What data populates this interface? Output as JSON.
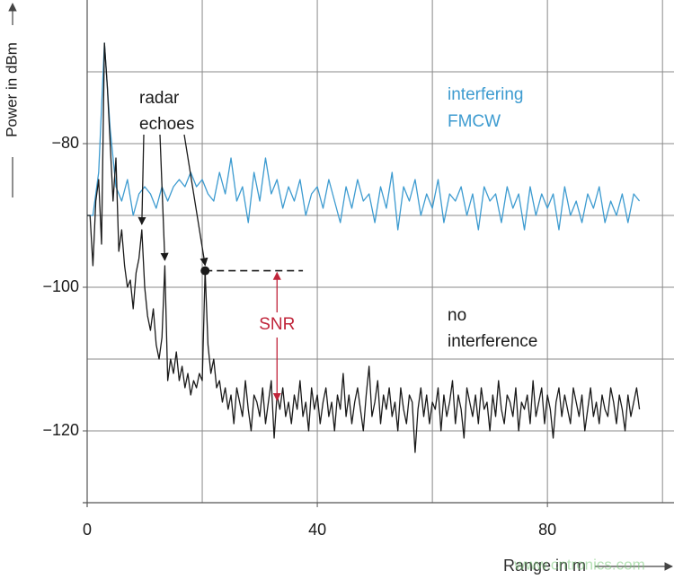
{
  "chart_data": {
    "type": "line",
    "y_label": "Power in dBm",
    "x_label": "Range in m",
    "watermark": "www.cntronics.com",
    "xlim": [
      0,
      102
    ],
    "ylim": [
      -130,
      -60
    ],
    "xticks": [
      0,
      40,
      80
    ],
    "yticks": [
      {
        "value": -80,
        "label": "−80"
      },
      {
        "value": -100,
        "label": "−100"
      },
      {
        "value": -120,
        "label": "−120"
      }
    ],
    "xgrid": [
      20,
      40,
      60,
      80,
      100
    ],
    "ygrid": [
      -70,
      -80,
      -90,
      -100,
      -110,
      -120
    ],
    "grid": true,
    "series": [
      {
        "name": "no interference",
        "color": "#1a1a1a",
        "x": [
          0,
          0.5,
          1,
          1.5,
          2,
          2.5,
          3,
          3.5,
          4,
          4.5,
          5,
          5.5,
          6,
          6.5,
          7,
          7.5,
          8,
          8.5,
          9,
          9.5,
          10,
          10.5,
          11,
          11.5,
          12,
          12.5,
          13,
          13.5,
          14,
          14.5,
          15,
          15.5,
          16,
          16.5,
          17,
          17.5,
          18,
          18.5,
          19,
          19.5,
          20,
          20.5,
          21,
          21.5,
          22,
          22.5,
          23,
          23.5,
          24,
          24.5,
          25,
          25.5,
          26,
          26.5,
          27,
          27.5,
          28,
          28.5,
          29,
          29.5,
          30,
          30.5,
          31,
          31.5,
          32,
          32.5,
          33,
          33.5,
          34,
          34.5,
          35,
          35.5,
          36,
          36.5,
          37,
          37.5,
          38,
          38.5,
          39,
          39.5,
          40,
          40.5,
          41,
          41.5,
          42,
          42.5,
          43,
          43.5,
          44,
          44.5,
          45,
          45.5,
          46,
          46.5,
          47,
          47.5,
          48,
          48.5,
          49,
          49.5,
          50,
          50.5,
          51,
          51.5,
          52,
          52.5,
          53,
          53.5,
          54,
          54.5,
          55,
          55.5,
          56,
          56.5,
          57,
          57.5,
          58,
          58.5,
          59,
          59.5,
          60,
          60.5,
          61,
          61.5,
          62,
          62.5,
          63,
          63.5,
          64,
          64.5,
          65,
          65.5,
          66,
          66.5,
          67,
          67.5,
          68,
          68.5,
          69,
          69.5,
          70,
          70.5,
          71,
          71.5,
          72,
          72.5,
          73,
          73.5,
          74,
          74.5,
          75,
          75.5,
          76,
          76.5,
          77,
          77.5,
          78,
          78.5,
          79,
          79.5,
          80,
          80.5,
          81,
          81.5,
          82,
          82.5,
          83,
          83.5,
          84,
          84.5,
          85,
          85.5,
          86,
          86.5,
          87,
          87.5,
          88,
          88.5,
          89,
          89.5,
          90,
          90.5,
          91,
          91.5,
          92,
          92.5,
          93,
          93.5,
          94,
          94.5,
          95,
          95.5,
          96
        ],
        "values": [
          -90,
          -90,
          -97,
          -88,
          -85,
          -94,
          -66,
          -72,
          -80,
          -88,
          -82,
          -95,
          -92,
          -97,
          -100,
          -99,
          -103,
          -98,
          -96,
          -92,
          -100,
          -104,
          -106,
          -103,
          -108,
          -110,
          -107,
          -97,
          -113,
          -110,
          -112,
          -109,
          -113,
          -111,
          -114,
          -112,
          -115,
          -113,
          -114,
          -112,
          -113,
          -97.7,
          -108,
          -112,
          -110,
          -114,
          -113,
          -116,
          -114,
          -117,
          -115,
          -119,
          -114,
          -116,
          -118,
          -113,
          -117,
          -120,
          -115,
          -116,
          -118,
          -114,
          -119,
          -116,
          -113,
          -121,
          -115,
          -117,
          -114,
          -118,
          -116,
          -119,
          -115,
          -117,
          -113,
          -118,
          -116,
          -120,
          -114,
          -117,
          -115,
          -119,
          -116,
          -114,
          -118,
          -116,
          -120,
          -115,
          -117,
          -112,
          -118,
          -115,
          -119,
          -116,
          -114,
          -117,
          -120,
          -115,
          -111,
          -118,
          -116,
          -113,
          -119,
          -115,
          -117,
          -114,
          -118,
          -116,
          -120,
          -114,
          -117,
          -119,
          -115,
          -116,
          -123,
          -117,
          -114,
          -118,
          -115,
          -119,
          -116,
          -117,
          -114,
          -120,
          -115,
          -118,
          -116,
          -113,
          -119,
          -115,
          -117,
          -121,
          -114,
          -116,
          -118,
          -115,
          -119,
          -114,
          -117,
          -116,
          -120,
          -115,
          -118,
          -113,
          -117,
          -119,
          -115,
          -116,
          -118,
          -114,
          -120,
          -116,
          -117,
          -115,
          -119,
          -113,
          -118,
          -116,
          -114,
          -119,
          -115,
          -117,
          -121,
          -116,
          -114,
          -118,
          -115,
          -117,
          -119,
          -114,
          -116,
          -118,
          -115,
          -120,
          -117,
          -114,
          -118,
          -116,
          -119,
          -115,
          -117,
          -118,
          -114,
          -116,
          -119,
          -115,
          -117,
          -120,
          -115,
          -118,
          -116,
          -114,
          -117
        ]
      },
      {
        "name": "interfering FMCW",
        "color": "#3d9bd0",
        "x": [
          0,
          1,
          2,
          3,
          4,
          5,
          6,
          7,
          8,
          9,
          10,
          11,
          12,
          13,
          14,
          15,
          16,
          17,
          18,
          19,
          20,
          21,
          22,
          23,
          24,
          25,
          26,
          27,
          28,
          29,
          30,
          31,
          32,
          33,
          34,
          35,
          36,
          37,
          38,
          39,
          40,
          41,
          42,
          43,
          44,
          45,
          46,
          47,
          48,
          49,
          50,
          51,
          52,
          53,
          54,
          55,
          56,
          57,
          58,
          59,
          60,
          61,
          62,
          63,
          64,
          65,
          66,
          67,
          68,
          69,
          70,
          71,
          72,
          73,
          74,
          75,
          76,
          77,
          78,
          79,
          80,
          81,
          82,
          83,
          84,
          85,
          86,
          87,
          88,
          89,
          90,
          91,
          92,
          93,
          94,
          95,
          96
        ],
        "values": [
          -90,
          -90,
          -84,
          -66,
          -78,
          -86,
          -88,
          -85,
          -90,
          -87,
          -86,
          -87,
          -89,
          -86,
          -88,
          -86,
          -85,
          -86,
          -84,
          -86,
          -85,
          -87,
          -88,
          -84,
          -87,
          -82,
          -88,
          -86,
          -91,
          -84,
          -88,
          -82,
          -87,
          -85,
          -89,
          -86,
          -88,
          -85,
          -90,
          -87,
          -86,
          -89,
          -85,
          -88,
          -91,
          -86,
          -89,
          -85,
          -88,
          -87,
          -91,
          -86,
          -89,
          -84,
          -92,
          -86,
          -88,
          -85,
          -90,
          -87,
          -89,
          -85,
          -91,
          -87,
          -88,
          -86,
          -90,
          -87,
          -92,
          -86,
          -88,
          -87,
          -91,
          -86,
          -89,
          -87,
          -92,
          -86,
          -90,
          -87,
          -89,
          -87,
          -92,
          -86,
          -90,
          -88,
          -91,
          -87,
          -89,
          -86,
          -91,
          -88,
          -90,
          -87,
          -91,
          -87,
          -88
        ]
      }
    ],
    "annotations": [
      {
        "lines": [
          "radar",
          "echoes"
        ]
      },
      {
        "lines": [
          "interfering",
          "FMCW"
        ]
      },
      {
        "lines": [
          "no",
          "interference"
        ]
      }
    ],
    "snr": {
      "label": "SNR",
      "x": 33,
      "y": [
        -97.7,
        -116
      ]
    },
    "reference_line": {
      "x": [
        20.5,
        37.5
      ],
      "y": -97.7
    }
  }
}
